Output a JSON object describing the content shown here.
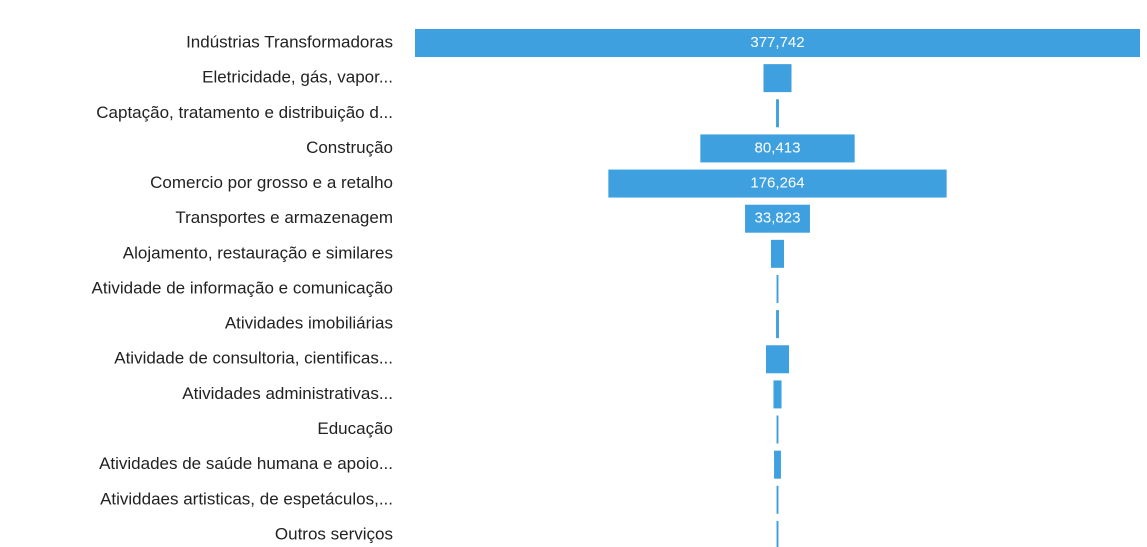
{
  "chart_data": {
    "type": "funnel",
    "color": "#3fa0df",
    "categories": [
      "Indústrias Transformadoras",
      "Eletricidade, gás, vapor...",
      "Captação, tratamento e distribuição d...",
      "Construção",
      "Comercio por grosso e a retalho",
      "Transportes e armazenagem",
      "Alojamento, restauração e similares",
      "Atividade de informação e comunicação",
      "Atividades imobiliárias",
      "Atividade de consultoria, cientificas...",
      "Atividades administrativas...",
      "Educação",
      "Atividades de saúde humana e apoio...",
      "Atividdaes artisticas, de espetáculos,...",
      "Outros serviços"
    ],
    "values": [
      377742,
      14600,
      1500,
      80413,
      176264,
      33823,
      6800,
      1000,
      1500,
      12000,
      4200,
      1000,
      3600,
      1000,
      1000
    ],
    "value_labels": [
      "377,742",
      null,
      null,
      "80,413",
      "176,264",
      "33,823",
      null,
      null,
      null,
      null,
      null,
      null,
      null,
      null,
      null
    ]
  }
}
